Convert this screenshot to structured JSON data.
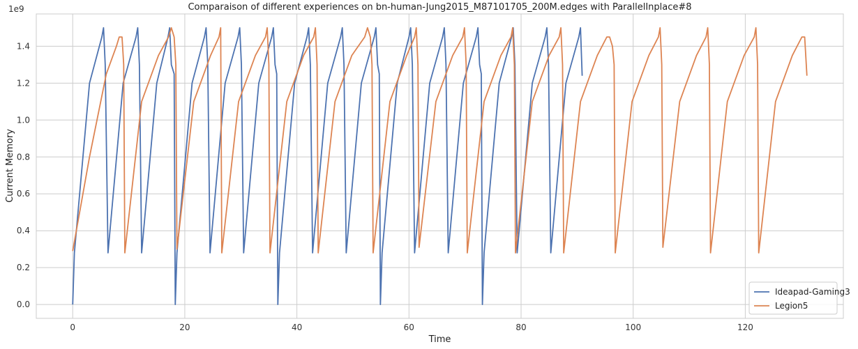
{
  "chart_data": {
    "type": "line",
    "title": "Comparaison of different experiences on bn-human-Jung2015_M87101705_200M.edges with ParallelInplace#8",
    "xlabel": "Time",
    "ylabel": "Current Memory",
    "y_offset_label": "1e9",
    "xlim": [
      -6.5,
      137.5
    ],
    "ylim": [
      -0.075,
      1.575
    ],
    "x_ticks": [
      0,
      20,
      40,
      60,
      80,
      100,
      120
    ],
    "x_tick_labels": [
      "0",
      "20",
      "40",
      "60",
      "80",
      "100",
      "120"
    ],
    "y_ticks": [
      0.0,
      0.2,
      0.4,
      0.6,
      0.8,
      1.0,
      1.2,
      1.4
    ],
    "y_tick_labels": [
      "0.0",
      "0.2",
      "0.4",
      "0.6",
      "0.8",
      "1.0",
      "1.2",
      "1.4"
    ],
    "grid": true,
    "legend_position": "bottom-right",
    "series": [
      {
        "name": "Ideapad-Gaming3",
        "color": "#4c72b0",
        "x": [
          0.0,
          0.3,
          3.0,
          5.2,
          5.5,
          5.8,
          6.3,
          9.0,
          11.3,
          11.6,
          11.9,
          12.3,
          15.0,
          17.0,
          17.3,
          17.6,
          18.1,
          18.3,
          18.6,
          21.3,
          23.5,
          23.8,
          24.1,
          24.5,
          27.2,
          29.5,
          29.8,
          30.1,
          30.5,
          33.2,
          35.5,
          35.8,
          36.1,
          36.4,
          36.6,
          36.9,
          39.6,
          41.8,
          42.1,
          42.4,
          42.8,
          45.5,
          47.8,
          48.1,
          48.4,
          48.8,
          51.5,
          53.8,
          54.1,
          54.4,
          54.7,
          54.9,
          55.2,
          57.9,
          60.0,
          60.3,
          60.6,
          61.0,
          63.7,
          66.0,
          66.3,
          66.6,
          67.0,
          69.7,
          72.0,
          72.3,
          72.6,
          72.9,
          73.1,
          73.4,
          76.1,
          78.3,
          78.6,
          78.9,
          79.3,
          82.0,
          84.3,
          84.6,
          84.9,
          85.3,
          88.0,
          90.3,
          90.6,
          90.9
        ],
        "y": [
          0.0,
          0.28,
          1.2,
          1.45,
          1.5,
          1.3,
          0.28,
          1.2,
          1.45,
          1.5,
          1.3,
          0.28,
          1.2,
          1.45,
          1.5,
          1.3,
          1.25,
          0.0,
          0.28,
          1.2,
          1.45,
          1.5,
          1.3,
          0.28,
          1.2,
          1.45,
          1.5,
          1.3,
          0.28,
          1.2,
          1.45,
          1.5,
          1.3,
          1.25,
          0.0,
          0.28,
          1.2,
          1.45,
          1.5,
          1.3,
          0.28,
          1.2,
          1.45,
          1.5,
          1.3,
          0.28,
          1.2,
          1.45,
          1.5,
          1.3,
          1.25,
          0.0,
          0.28,
          1.2,
          1.45,
          1.5,
          1.3,
          0.28,
          1.2,
          1.45,
          1.5,
          1.3,
          0.28,
          1.2,
          1.45,
          1.5,
          1.3,
          1.25,
          0.0,
          0.28,
          1.2,
          1.45,
          1.5,
          1.3,
          0.28,
          1.2,
          1.45,
          1.5,
          1.3,
          0.28,
          1.2,
          1.45,
          1.5,
          1.24
        ]
      },
      {
        "name": "Legion5",
        "color": "#dd8452",
        "x": [
          0.0,
          3.0,
          6.0,
          7.8,
          8.3,
          8.8,
          9.1,
          9.3,
          12.3,
          15.3,
          17.1,
          17.6,
          18.1,
          18.4,
          18.6,
          21.6,
          24.6,
          26.1,
          26.4,
          26.6,
          29.6,
          32.6,
          34.4,
          34.7,
          35.0,
          35.2,
          38.2,
          41.2,
          43.0,
          43.3,
          43.6,
          43.8,
          46.8,
          49.8,
          52.1,
          52.6,
          53.1,
          53.4,
          53.6,
          56.6,
          59.6,
          61.0,
          61.3,
          61.6,
          61.8,
          64.8,
          67.8,
          69.6,
          69.9,
          70.2,
          70.4,
          73.4,
          76.4,
          78.2,
          78.5,
          78.8,
          79.0,
          82.0,
          85.0,
          86.8,
          87.1,
          87.4,
          87.6,
          90.6,
          93.6,
          95.3,
          95.8,
          96.3,
          96.6,
          96.8,
          99.8,
          102.8,
          104.5,
          104.8,
          105.1,
          105.3,
          108.3,
          111.3,
          113.0,
          113.3,
          113.6,
          113.8,
          116.8,
          119.8,
          121.6,
          121.9,
          122.2,
          122.4,
          125.4,
          128.4,
          130.1,
          130.6,
          131.0
        ],
        "y": [
          0.29,
          0.8,
          1.25,
          1.4,
          1.45,
          1.45,
          1.3,
          0.28,
          1.1,
          1.35,
          1.45,
          1.5,
          1.45,
          1.3,
          0.3,
          1.1,
          1.35,
          1.45,
          1.5,
          0.28,
          1.1,
          1.35,
          1.45,
          1.5,
          1.3,
          0.28,
          1.1,
          1.35,
          1.45,
          1.5,
          1.3,
          0.28,
          1.1,
          1.35,
          1.45,
          1.5,
          1.45,
          1.3,
          0.28,
          1.1,
          1.35,
          1.45,
          1.5,
          1.3,
          0.31,
          1.1,
          1.35,
          1.45,
          1.5,
          1.3,
          0.28,
          1.1,
          1.35,
          1.45,
          1.5,
          1.3,
          0.28,
          1.1,
          1.35,
          1.45,
          1.5,
          1.3,
          0.28,
          1.1,
          1.35,
          1.45,
          1.45,
          1.4,
          1.3,
          0.28,
          1.1,
          1.35,
          1.45,
          1.5,
          1.3,
          0.31,
          1.1,
          1.35,
          1.45,
          1.5,
          1.3,
          0.28,
          1.1,
          1.35,
          1.45,
          1.5,
          1.3,
          0.28,
          1.1,
          1.35,
          1.45,
          1.45,
          1.24
        ]
      }
    ]
  }
}
